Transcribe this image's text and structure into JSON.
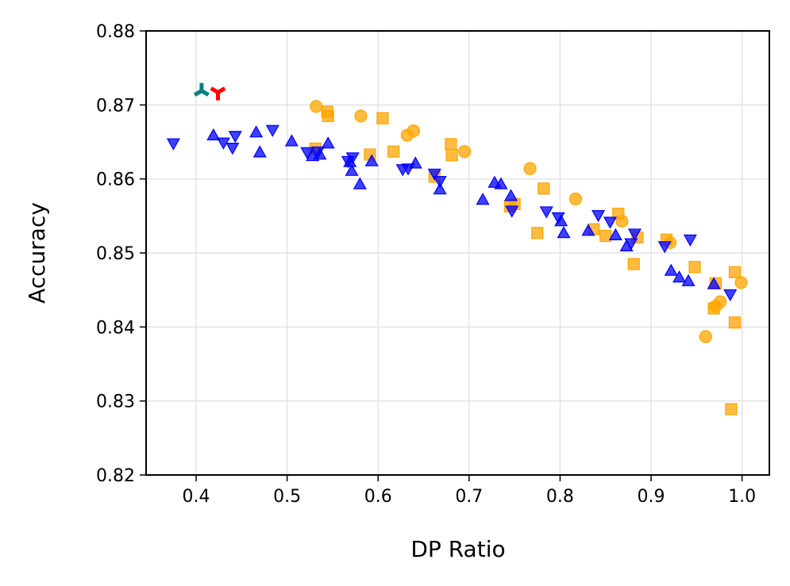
{
  "chart_data": {
    "type": "scatter",
    "title": "",
    "xlabel": "DP Ratio",
    "ylabel": "Accuracy",
    "xlim": [
      0.345,
      1.03
    ],
    "ylim": [
      0.82,
      0.88
    ],
    "xticks": [
      0.4,
      0.5,
      0.6,
      0.7,
      0.8,
      0.9,
      1.0
    ],
    "xtick_labels": [
      "0.4",
      "0.5",
      "0.6",
      "0.7",
      "0.8",
      "0.9",
      "1.0"
    ],
    "yticks": [
      0.82,
      0.83,
      0.84,
      0.85,
      0.86,
      0.87,
      0.88
    ],
    "ytick_labels": [
      "0.82",
      "0.83",
      "0.84",
      "0.85",
      "0.86",
      "0.87",
      "0.88"
    ],
    "grid": true,
    "series": [
      {
        "name": "orange-circles",
        "marker": "circle",
        "color": "#FFA500",
        "points": [
          [
            0.532,
            0.8698
          ],
          [
            0.581,
            0.8685
          ],
          [
            0.639,
            0.8665
          ],
          [
            0.632,
            0.8659
          ],
          [
            0.695,
            0.8637
          ],
          [
            0.767,
            0.8614
          ],
          [
            0.817,
            0.8573
          ],
          [
            0.868,
            0.8543
          ],
          [
            0.921,
            0.8514
          ],
          [
            0.999,
            0.846
          ],
          [
            0.976,
            0.8434
          ],
          [
            0.971,
            0.8428
          ],
          [
            0.96,
            0.8387
          ]
        ]
      },
      {
        "name": "orange-squares",
        "marker": "square",
        "color": "#FFA500",
        "points": [
          [
            0.544,
            0.8691
          ],
          [
            0.545,
            0.8685
          ],
          [
            0.605,
            0.8682
          ],
          [
            0.68,
            0.8647
          ],
          [
            0.531,
            0.8641
          ],
          [
            0.617,
            0.8637
          ],
          [
            0.591,
            0.8633
          ],
          [
            0.681,
            0.8632
          ],
          [
            0.662,
            0.8603
          ],
          [
            0.782,
            0.8587
          ],
          [
            0.75,
            0.8566
          ],
          [
            0.745,
            0.8563
          ],
          [
            0.775,
            0.8527
          ],
          [
            0.837,
            0.8532
          ],
          [
            0.85,
            0.8523
          ],
          [
            0.864,
            0.8553
          ],
          [
            0.885,
            0.8521
          ],
          [
            0.917,
            0.8518
          ],
          [
            0.881,
            0.8485
          ],
          [
            0.948,
            0.8481
          ],
          [
            0.992,
            0.8474
          ],
          [
            0.971,
            0.8459
          ],
          [
            0.969,
            0.8425
          ],
          [
            0.992,
            0.8406
          ],
          [
            0.988,
            0.8289
          ]
        ]
      },
      {
        "name": "blue-triangles-up",
        "marker": "triangle-up",
        "color": "#0000FF",
        "points": [
          [
            0.419,
            0.8658
          ],
          [
            0.466,
            0.8662
          ],
          [
            0.47,
            0.8635
          ],
          [
            0.505,
            0.865
          ],
          [
            0.545,
            0.8647
          ],
          [
            0.536,
            0.8632
          ],
          [
            0.528,
            0.863
          ],
          [
            0.569,
            0.8622
          ],
          [
            0.593,
            0.8623
          ],
          [
            0.571,
            0.861
          ],
          [
            0.58,
            0.8592
          ],
          [
            0.641,
            0.862
          ],
          [
            0.668,
            0.8585
          ],
          [
            0.715,
            0.8571
          ],
          [
            0.728,
            0.8594
          ],
          [
            0.735,
            0.8592
          ],
          [
            0.746,
            0.8576
          ],
          [
            0.801,
            0.8542
          ],
          [
            0.804,
            0.8526
          ],
          [
            0.831,
            0.8529
          ],
          [
            0.861,
            0.8523
          ],
          [
            0.873,
            0.8508
          ],
          [
            0.922,
            0.8475
          ],
          [
            0.931,
            0.8466
          ],
          [
            0.941,
            0.8461
          ],
          [
            0.969,
            0.8457
          ]
        ]
      },
      {
        "name": "blue-triangles-down",
        "marker": "triangle-down",
        "color": "#0000FF",
        "points": [
          [
            0.375,
            0.8649
          ],
          [
            0.43,
            0.865
          ],
          [
            0.44,
            0.8643
          ],
          [
            0.443,
            0.8659
          ],
          [
            0.484,
            0.8667
          ],
          [
            0.522,
            0.8637
          ],
          [
            0.534,
            0.8638
          ],
          [
            0.567,
            0.8625
          ],
          [
            0.572,
            0.863
          ],
          [
            0.627,
            0.8614
          ],
          [
            0.633,
            0.8615
          ],
          [
            0.662,
            0.8608
          ],
          [
            0.668,
            0.8598
          ],
          [
            0.747,
            0.8558
          ],
          [
            0.785,
            0.8557
          ],
          [
            0.798,
            0.8549
          ],
          [
            0.842,
            0.8552
          ],
          [
            0.855,
            0.8543
          ],
          [
            0.878,
            0.8514
          ],
          [
            0.882,
            0.8527
          ],
          [
            0.915,
            0.851
          ],
          [
            0.943,
            0.8519
          ],
          [
            0.987,
            0.8445
          ]
        ]
      },
      {
        "name": "teal-tri-marker",
        "marker": "tri-up",
        "color": "#008080",
        "points": [
          [
            0.406,
            0.8719
          ]
        ]
      },
      {
        "name": "red-tri-marker",
        "marker": "tri-down",
        "color": "#FF0000",
        "points": [
          [
            0.424,
            0.8717
          ]
        ]
      }
    ]
  }
}
